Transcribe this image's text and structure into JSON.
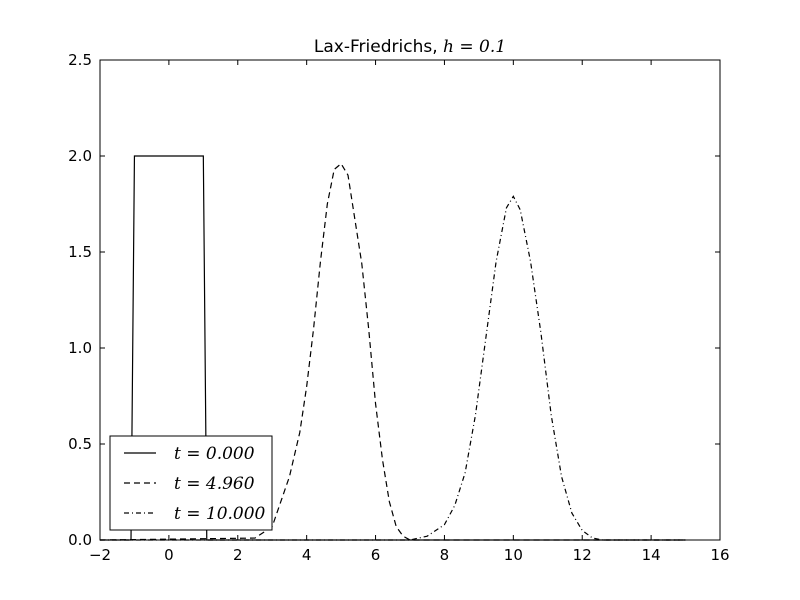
{
  "chart_data": {
    "type": "line",
    "title_text": "Lax-Friedrichs, ",
    "title_math": "h = 0.1",
    "xlabel": "",
    "ylabel": "",
    "xlim": [
      -2,
      16
    ],
    "ylim": [
      0,
      2.5
    ],
    "xticks": [
      -2,
      0,
      2,
      4,
      6,
      8,
      10,
      12,
      14,
      16
    ],
    "xtick_labels": [
      "−2",
      "0",
      "2",
      "4",
      "6",
      "8",
      "10",
      "12",
      "14",
      "16"
    ],
    "yticks": [
      0.0,
      0.5,
      1.0,
      1.5,
      2.0,
      2.5
    ],
    "ytick_labels": [
      "0.0",
      "0.5",
      "1.0",
      "1.5",
      "2.0",
      "2.5"
    ],
    "grid": false,
    "legend_position": "lower-left",
    "series": [
      {
        "name": "t = 0.000",
        "style": "solid",
        "x": [
          -2.0,
          -1.1,
          -1.0,
          1.0,
          1.1,
          15.0
        ],
        "y": [
          0.0,
          0.0,
          2.0,
          2.0,
          0.0,
          0.0
        ]
      },
      {
        "name": "t = 4.960",
        "style": "dashed",
        "x": [
          -2.0,
          2.5,
          3.0,
          3.5,
          3.8,
          4.0,
          4.2,
          4.4,
          4.6,
          4.8,
          5.0,
          5.2,
          5.4,
          5.6,
          5.8,
          6.0,
          6.2,
          6.4,
          6.6,
          6.8,
          7.0,
          7.2,
          15.0
        ],
        "y": [
          0.0,
          0.01,
          0.07,
          0.33,
          0.56,
          0.8,
          1.1,
          1.45,
          1.75,
          1.93,
          1.96,
          1.9,
          1.67,
          1.44,
          1.1,
          0.71,
          0.42,
          0.2,
          0.07,
          0.02,
          0.0,
          0.0,
          0.0
        ]
      },
      {
        "name": "t = 10.000",
        "style": "dashdot",
        "x": [
          -2.0,
          7.0,
          7.5,
          8.0,
          8.3,
          8.6,
          8.9,
          9.2,
          9.5,
          9.8,
          10.0,
          10.2,
          10.5,
          10.8,
          11.1,
          11.4,
          11.7,
          12.0,
          12.3,
          12.6,
          13.0,
          15.0
        ],
        "y": [
          0.0,
          0.0,
          0.02,
          0.08,
          0.18,
          0.35,
          0.65,
          1.05,
          1.45,
          1.73,
          1.79,
          1.72,
          1.45,
          1.08,
          0.65,
          0.33,
          0.14,
          0.05,
          0.01,
          0.0,
          0.0,
          0.0
        ]
      }
    ]
  }
}
